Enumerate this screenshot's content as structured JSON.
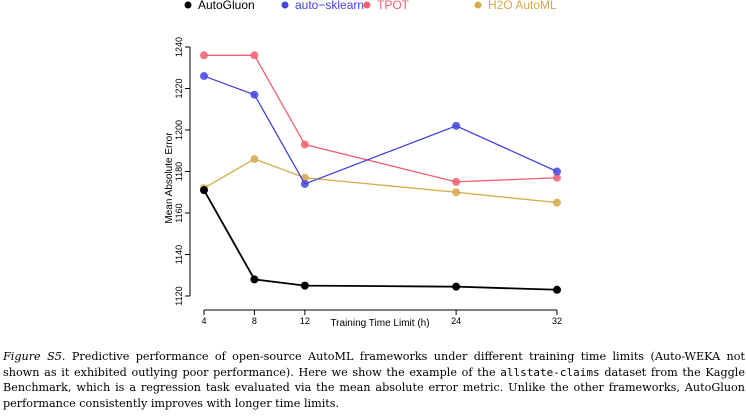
{
  "chart_data": {
    "type": "line",
    "title": "",
    "xlabel": "Training Time Limit (h)",
    "ylabel": "Mean Absolute Error",
    "x": [
      4,
      8,
      12,
      24,
      32
    ],
    "x_ticks": [
      4,
      8,
      12,
      24,
      32
    ],
    "xlim": [
      4,
      32
    ],
    "ylim": [
      1120,
      1240
    ],
    "y_ticks": [
      1120,
      1140,
      1160,
      1180,
      1200,
      1220,
      1240
    ],
    "grid": false,
    "legend_position": "top, horizontal above the plot",
    "series": [
      {
        "name": "AutoGluon",
        "color": "#000000",
        "values": [
          1171,
          1128,
          1125,
          1124.5,
          1123
        ]
      },
      {
        "name": "auto−sklearn",
        "color": "#4444e0",
        "values": [
          1226,
          1217,
          1174,
          1202,
          1180
        ]
      },
      {
        "name": "TPOT",
        "color": "#f26070",
        "values": [
          1236,
          1236,
          1193,
          1175,
          1177
        ]
      },
      {
        "name": "H2O AutoML",
        "color": "#d6a94a",
        "values": [
          1172,
          1186,
          1177,
          1170,
          1165
        ]
      }
    ]
  },
  "caption": {
    "label": "Figure S5",
    "text_before_code": ". Predictive performance of open-source AutoML frameworks under different training time limits (Auto-WEKA not shown as it exhibited outlying poor performance).  Here we show the example of the ",
    "code": "allstate-claims",
    "text_after_code": " dataset from the Kaggle Benchmark, which is a regression task evaluated via the mean absolute error metric.  Unlike the other frameworks, AutoGluon performance consistently improves with longer time limits."
  }
}
